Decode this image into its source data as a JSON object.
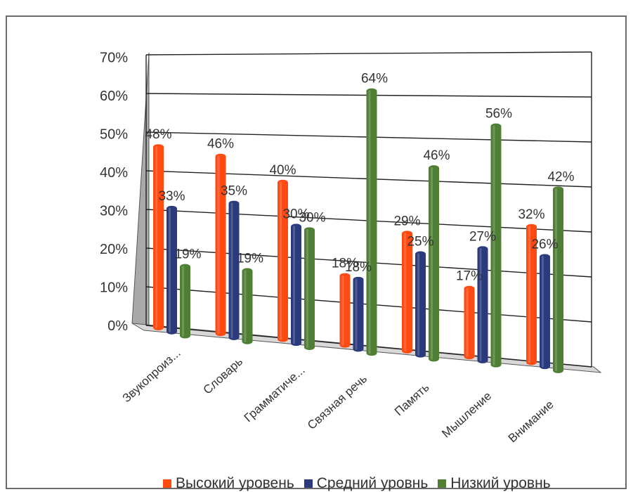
{
  "chart_data": {
    "type": "bar",
    "title": "",
    "categories": [
      "Звукопроиз...",
      "Словарь",
      "Грамматиче...",
      "Связная речь",
      "Память",
      "Мышление",
      "Внимание"
    ],
    "series": [
      {
        "name": "Высокий уровень",
        "color": "#ff4a12",
        "values": [
          48,
          46,
          40,
          18,
          29,
          17,
          32
        ],
        "labels": [
          "48%",
          "46%",
          "40%",
          "18%",
          "29%",
          "17%",
          "32%"
        ]
      },
      {
        "name": "Средний уровнь",
        "color": "#2a3a7c",
        "values": [
          33,
          35,
          30,
          18,
          25,
          27,
          26
        ],
        "labels": [
          "33%",
          "35%",
          "30%",
          "18%",
          "25%",
          "27%",
          "26%"
        ]
      },
      {
        "name": "Низкий уровнь",
        "color": "#4f7f34",
        "values": [
          19,
          19,
          30,
          64,
          46,
          56,
          42
        ],
        "labels": [
          "19%",
          "19%",
          "30%",
          "64%",
          "46%",
          "56%",
          "42%"
        ]
      }
    ],
    "yaxis": {
      "ticks": [
        "0%",
        "10%",
        "20%",
        "30%",
        "40%",
        "50%",
        "60%",
        "70%"
      ],
      "min": 0,
      "max": 70
    },
    "grid": true,
    "legend_position": "bottom"
  }
}
